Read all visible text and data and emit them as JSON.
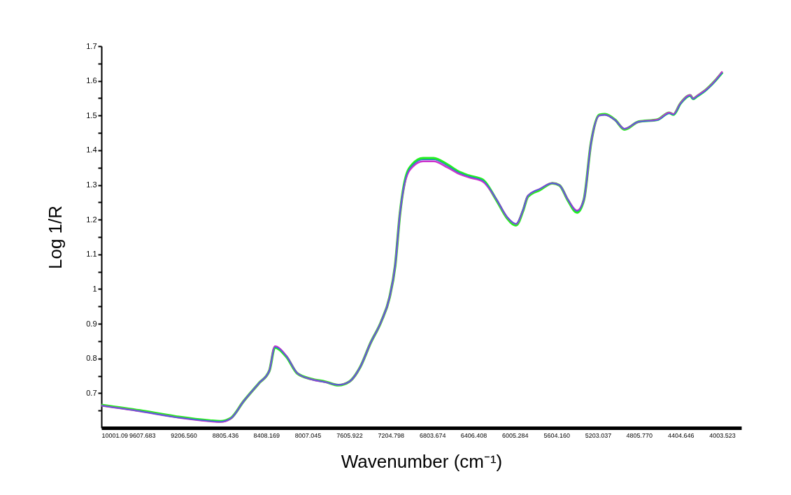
{
  "chart_data": {
    "type": "line",
    "xlabel": "Wavenumber (cm⁻¹)",
    "ylabel": "Log 1/R",
    "x": [
      10001.09,
      9629,
      9291,
      8954,
      8852,
      8751,
      8629,
      8481,
      8379,
      8325,
      8211,
      8109,
      7974,
      7839,
      7710,
      7602,
      7501,
      7400,
      7298,
      7217,
      7163,
      7116,
      7062,
      6994,
      6893,
      6791,
      6656,
      6555,
      6454,
      6318,
      6183,
      6082,
      5995,
      5927,
      5880,
      5764,
      5643,
      5575,
      5494,
      5406,
      5339,
      5271,
      5190,
      5136,
      5035,
      4947,
      4812,
      4629,
      4514,
      4474,
      4406,
      4312,
      4285,
      4244,
      4156,
      4069,
      4001
    ],
    "series": [
      {
        "color": "#22ee22",
        "values": [
          0.666,
          0.65,
          0.633,
          0.621,
          0.619,
          0.628,
          0.676,
          0.728,
          0.764,
          0.832,
          0.804,
          0.757,
          0.741,
          0.733,
          0.723,
          0.734,
          0.775,
          0.845,
          0.906,
          0.976,
          1.067,
          1.218,
          1.32,
          1.36,
          1.377,
          1.377,
          1.358,
          1.339,
          1.327,
          1.315,
          1.256,
          1.205,
          1.184,
          1.226,
          1.267,
          1.286,
          1.305,
          1.299,
          1.256,
          1.221,
          1.258,
          1.42,
          1.502,
          1.504,
          1.487,
          1.46,
          1.482,
          1.488,
          1.508,
          1.503,
          1.535,
          1.558,
          1.548,
          1.556,
          1.575,
          1.601,
          1.625
        ]
      },
      {
        "color": "#cc33cc",
        "values": [
          0.664,
          0.648,
          0.631,
          0.619,
          0.617,
          0.627,
          0.676,
          0.728,
          0.764,
          0.835,
          0.806,
          0.758,
          0.74,
          0.732,
          0.724,
          0.734,
          0.775,
          0.845,
          0.906,
          0.976,
          1.067,
          1.218,
          1.315,
          1.352,
          1.368,
          1.368,
          1.35,
          1.333,
          1.322,
          1.31,
          1.258,
          1.208,
          1.188,
          1.228,
          1.269,
          1.289,
          1.305,
          1.299,
          1.258,
          1.226,
          1.258,
          1.42,
          1.5,
          1.502,
          1.486,
          1.462,
          1.482,
          1.488,
          1.508,
          1.504,
          1.535,
          1.559,
          1.549,
          1.557,
          1.575,
          1.601,
          1.627
        ]
      },
      {
        "color": "#2a70e0",
        "values": [
          0.664,
          0.648,
          0.631,
          0.62,
          0.618,
          0.627,
          0.676,
          0.728,
          0.764,
          0.833,
          0.805,
          0.758,
          0.74,
          0.732,
          0.724,
          0.734,
          0.775,
          0.845,
          0.906,
          0.976,
          1.067,
          1.218,
          1.319,
          1.357,
          1.373,
          1.373,
          1.355,
          1.337,
          1.325,
          1.313,
          1.258,
          1.208,
          1.188,
          1.228,
          1.269,
          1.289,
          1.305,
          1.299,
          1.258,
          1.224,
          1.258,
          1.42,
          1.5,
          1.502,
          1.486,
          1.462,
          1.482,
          1.486,
          1.506,
          1.502,
          1.533,
          1.557,
          1.547,
          1.555,
          1.573,
          1.599,
          1.623
        ]
      }
    ],
    "xlim": [
      10001.09,
      3818
    ],
    "xticks": [
      10001.09,
      {
        "value": 9607.683,
        "label": "9607.683"
      },
      {
        "value": 9206.56,
        "label": "9206.560"
      },
      {
        "value": 8805.436,
        "label": "8805.436"
      },
      {
        "value": 8408.169,
        "label": "8408.169"
      },
      {
        "value": 8007.045,
        "label": "8007.045"
      },
      {
        "value": 7605.922,
        "label": "7605.922"
      },
      {
        "value": 7204.798,
        "label": "7204.798"
      },
      {
        "value": 6803.674,
        "label": "6803.674"
      },
      {
        "value": 6406.408,
        "label": "6406.408"
      },
      {
        "value": 6005.284,
        "label": "6005.284"
      },
      {
        "value": 5604.16,
        "label": "5604.160"
      },
      {
        "value": 5203.037,
        "label": "5203.037"
      },
      {
        "value": 4805.77,
        "label": "4805.770"
      },
      {
        "value": 4404.646,
        "label": "4404.646"
      },
      {
        "value": 4003.523,
        "label": "4003.523"
      }
    ],
    "ylim": [
      0.6,
      1.7
    ],
    "yticks": [
      {
        "value": 0.65,
        "label": null
      },
      0.7,
      {
        "value": 0.75,
        "label": null
      },
      0.8,
      {
        "value": 0.85,
        "label": null
      },
      0.9,
      {
        "value": 0.95,
        "label": null
      },
      1,
      {
        "value": 1.05,
        "label": null
      },
      1.1,
      {
        "value": 1.15,
        "label": null
      },
      1.2,
      {
        "value": 1.25,
        "label": null
      },
      1.3,
      {
        "value": 1.35,
        "label": null
      },
      1.4,
      {
        "value": 1.45,
        "label": null
      },
      1.5,
      {
        "value": 1.55,
        "label": null
      },
      1.6,
      {
        "value": 1.65,
        "label": null
      },
      1.7
    ],
    "grid": false,
    "legend": false
  }
}
